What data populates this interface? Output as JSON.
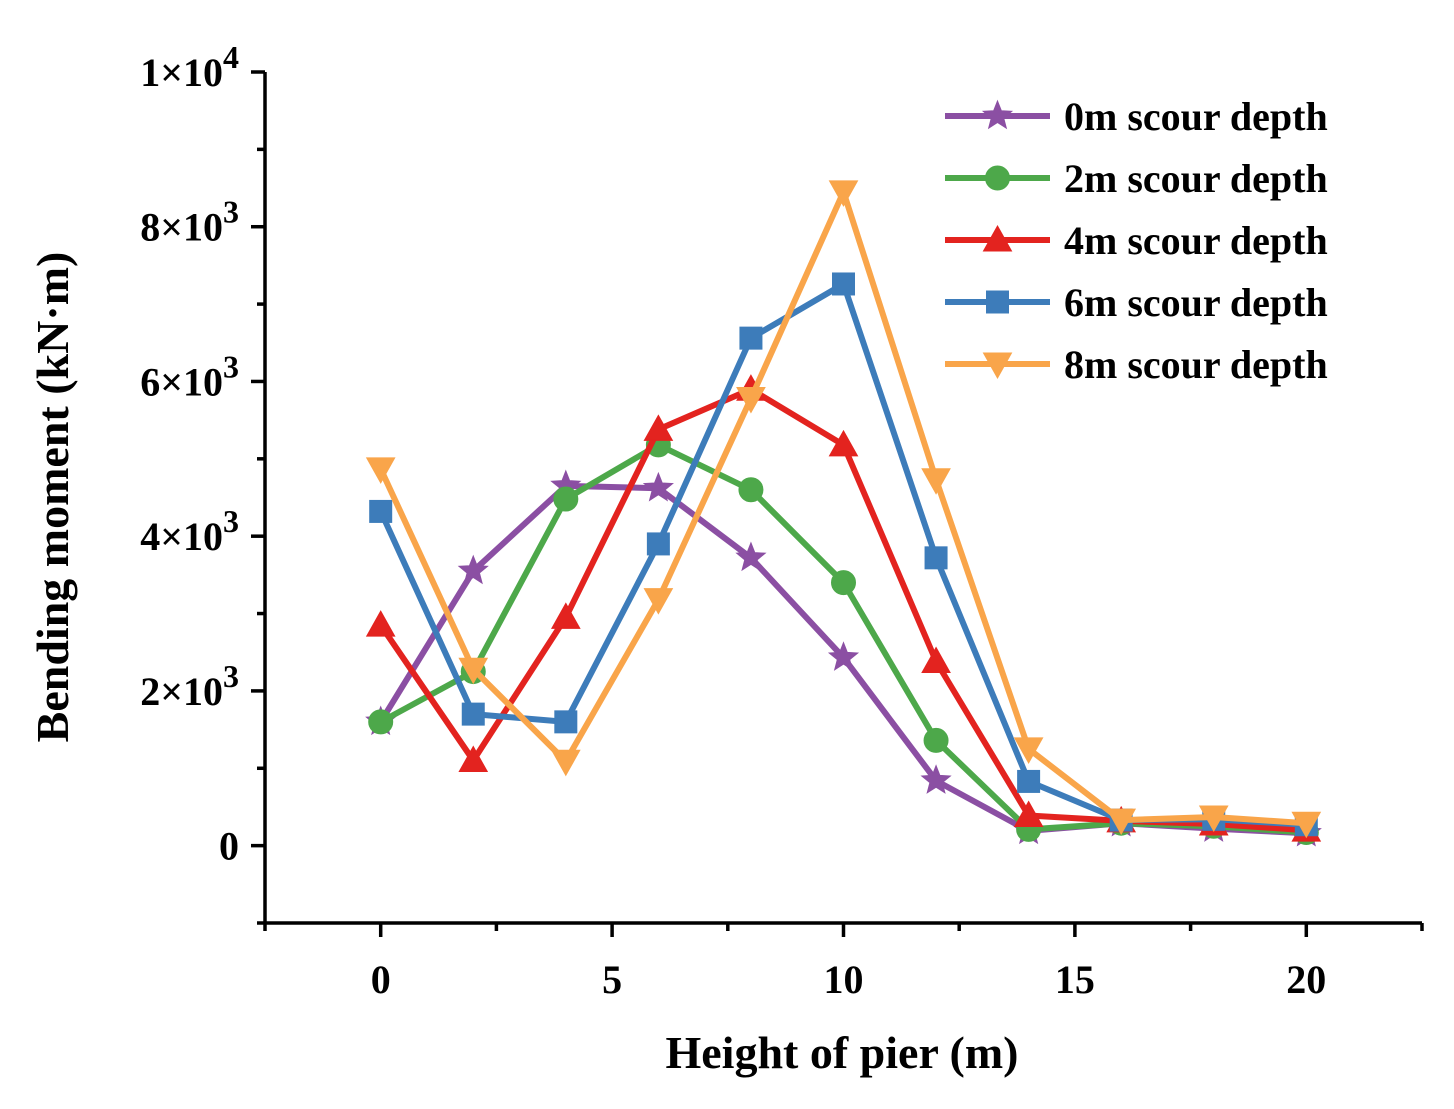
{
  "chart_data": {
    "type": "line",
    "xlabel": "Height of pier (m)",
    "ylabel": "Bending moment (kN·m)",
    "xlim": [
      -2.5,
      22.5
    ],
    "ylim": [
      -1000,
      10000
    ],
    "x_ticks": [
      {
        "value": 0,
        "label": "0"
      },
      {
        "value": 5,
        "label": "5"
      },
      {
        "value": 10,
        "label": "10"
      },
      {
        "value": 15,
        "label": "15"
      },
      {
        "value": 20,
        "label": "20"
      }
    ],
    "x_minor_ticks": [
      -2.5,
      2.5,
      7.5,
      12.5,
      17.5,
      22.5
    ],
    "y_ticks": [
      {
        "value": 0,
        "base": "0",
        "exp": ""
      },
      {
        "value": 2000,
        "base": "2×10",
        "exp": "3"
      },
      {
        "value": 4000,
        "base": "4×10",
        "exp": "3"
      },
      {
        "value": 6000,
        "base": "6×10",
        "exp": "3"
      },
      {
        "value": 8000,
        "base": "8×10",
        "exp": "3"
      },
      {
        "value": 10000,
        "base": "1×10",
        "exp": "4"
      }
    ],
    "y_minor_ticks": [
      -1000,
      1000,
      3000,
      5000,
      7000,
      9000
    ],
    "legend_position": "top-right",
    "x": [
      0,
      2,
      4,
      6,
      8,
      10,
      12,
      14,
      16,
      18,
      20
    ],
    "series": [
      {
        "name": "0m scour depth",
        "color": "#8B4FA3",
        "marker": "star",
        "values": [
          1600,
          3550,
          4650,
          4620,
          3720,
          2430,
          840,
          190,
          290,
          220,
          160
        ]
      },
      {
        "name": "2m scour depth",
        "color": "#4DA84A",
        "marker": "circle",
        "values": [
          1600,
          2250,
          4480,
          5180,
          4600,
          3400,
          1360,
          210,
          290,
          250,
          170
        ]
      },
      {
        "name": "4m scour depth",
        "color": "#E3231F",
        "marker": "triangle-up",
        "values": [
          2850,
          1100,
          2950,
          5380,
          5900,
          5180,
          2380,
          390,
          320,
          280,
          200
        ]
      },
      {
        "name": "6m scour depth",
        "color": "#3D7CBA",
        "marker": "square",
        "values": [
          4320,
          1700,
          1600,
          3900,
          6560,
          7260,
          3720,
          830,
          330,
          340,
          270
        ]
      },
      {
        "name": "8m scour depth",
        "color": "#F9A54A",
        "marker": "triangle-down",
        "values": [
          4870,
          2280,
          1090,
          3180,
          5780,
          8450,
          4730,
          1250,
          330,
          370,
          290
        ]
      }
    ]
  }
}
